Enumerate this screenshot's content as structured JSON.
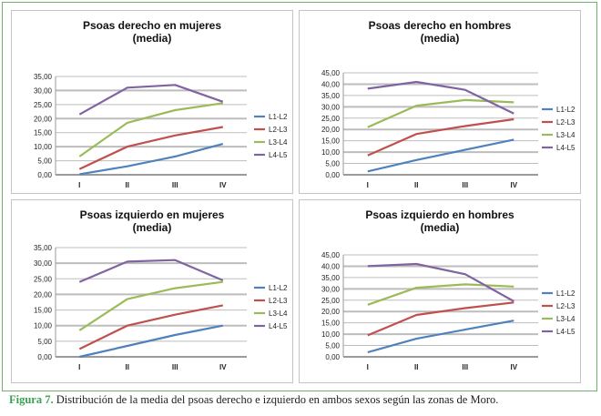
{
  "colors": {
    "frame": "#6db36d",
    "caption_label": "#3aa052",
    "grid": "#bdbdbd",
    "series": [
      "#4f81bd",
      "#c0504d",
      "#9bbb59",
      "#8064a2"
    ]
  },
  "caption": {
    "label": "Figura 7.",
    "text": "Distribución de la media del psoas derecho e izquierdo en ambos sexos según las zonas de Moro."
  },
  "chart_data": [
    {
      "type": "line",
      "title": "Psoas derecho en mujeres",
      "subtitle": "(media)",
      "categories": [
        "I",
        "II",
        "III",
        "IV"
      ],
      "ylim": [
        0,
        35
      ],
      "yticks": [
        "0,00",
        "5,00",
        "10,00",
        "15,00",
        "20,00",
        "25,00",
        "30,00",
        "35,00"
      ],
      "grid": true,
      "legend": "right",
      "series": [
        {
          "name": "L1-L2",
          "values": [
            0.2,
            3.0,
            6.5,
            11.0
          ]
        },
        {
          "name": "L2-L3",
          "values": [
            2.0,
            10.0,
            14.0,
            17.0
          ]
        },
        {
          "name": "L3-L4",
          "values": [
            6.5,
            18.5,
            23.0,
            25.5
          ]
        },
        {
          "name": "L4-L5",
          "values": [
            21.5,
            31.0,
            32.0,
            26.0
          ]
        }
      ]
    },
    {
      "type": "line",
      "title": "Psoas derecho en hombres",
      "subtitle": "(media)",
      "categories": [
        "I",
        "II",
        "III",
        "IV"
      ],
      "ylim": [
        0,
        45
      ],
      "yticks": [
        "0,00",
        "5,00",
        "10,00",
        "15,00",
        "20,00",
        "25,00",
        "30,00",
        "35,00",
        "40,00",
        "45,00"
      ],
      "grid": true,
      "legend": "right",
      "series": [
        {
          "name": "L1-L2",
          "values": [
            1.5,
            6.5,
            11.0,
            15.5
          ]
        },
        {
          "name": "L2-L3",
          "values": [
            8.5,
            18.0,
            21.5,
            24.5
          ]
        },
        {
          "name": "L3-L4",
          "values": [
            21.0,
            30.5,
            33.0,
            32.0
          ]
        },
        {
          "name": "L4-L5",
          "values": [
            38.0,
            41.0,
            37.5,
            27.0
          ]
        }
      ]
    },
    {
      "type": "line",
      "title": "Psoas izquierdo en mujeres",
      "subtitle": "(media)",
      "categories": [
        "I",
        "II",
        "III",
        "IV"
      ],
      "ylim": [
        0,
        35
      ],
      "yticks": [
        "0,00",
        "5,00",
        "10,00",
        "15,00",
        "20,00",
        "25,00",
        "30,00",
        "35,00"
      ],
      "grid": true,
      "legend": "right",
      "series": [
        {
          "name": "L1-L2",
          "values": [
            0.0,
            3.5,
            7.0,
            10.0
          ]
        },
        {
          "name": "L2-L3",
          "values": [
            2.5,
            10.0,
            13.5,
            16.5
          ]
        },
        {
          "name": "L3-L4",
          "values": [
            8.5,
            18.5,
            22.0,
            24.0
          ]
        },
        {
          "name": "L4-L5",
          "values": [
            24.0,
            30.5,
            31.0,
            24.5
          ]
        }
      ]
    },
    {
      "type": "line",
      "title": "Psoas izquierdo en hombres",
      "subtitle": "(media)",
      "categories": [
        "I",
        "II",
        "III",
        "IV"
      ],
      "ylim": [
        0,
        45
      ],
      "yticks": [
        "0,00",
        "5,00",
        "10,00",
        "15,00",
        "20,00",
        "25,00",
        "30,00",
        "35,00",
        "40,00",
        "45,00"
      ],
      "grid": true,
      "legend": "right",
      "series": [
        {
          "name": "L1-L2",
          "values": [
            2.0,
            8.0,
            12.0,
            16.0
          ]
        },
        {
          "name": "L2-L3",
          "values": [
            9.5,
            18.5,
            21.5,
            24.0
          ]
        },
        {
          "name": "L3-L4",
          "values": [
            23.0,
            30.5,
            32.0,
            31.0
          ]
        },
        {
          "name": "L4-L5",
          "values": [
            40.0,
            41.0,
            36.5,
            24.5
          ]
        }
      ]
    }
  ]
}
